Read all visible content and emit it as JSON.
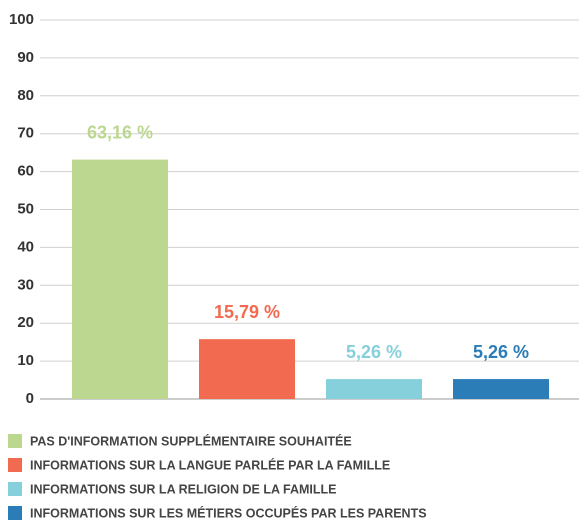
{
  "chart_data": {
    "type": "bar",
    "categories": [
      "PAS D'INFORMATION SUPPLÉMENTAIRE SOUHAITÉE",
      "INFORMATIONS SUR LA LANGUE PARLÉE PAR LA FAMILLE",
      "INFORMATIONS SUR LA RELIGION DE LA FAMILLE",
      "INFORMATIONS SUR LES MÉTIERS OCCUPÉS PAR LES PARENTS"
    ],
    "values": [
      63.16,
      15.79,
      5.26,
      5.26
    ],
    "value_labels": [
      "63,16 %",
      "15,79 %",
      "5,26 %",
      "5,26 %"
    ],
    "colors": [
      "#bcd78f",
      "#f26a4f",
      "#86d0db",
      "#2b7db7"
    ],
    "ylim": [
      0,
      100
    ],
    "yticks": [
      0,
      10,
      20,
      30,
      40,
      50,
      60,
      70,
      80,
      90,
      100
    ],
    "grid": true,
    "legend": "bottom"
  }
}
